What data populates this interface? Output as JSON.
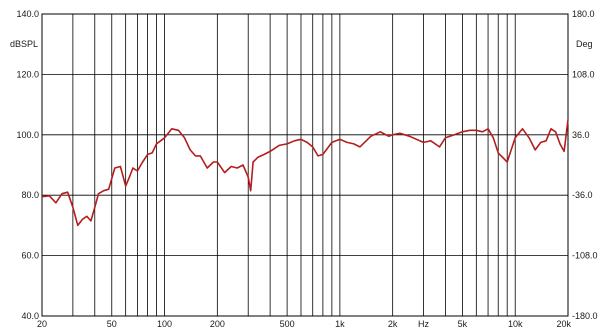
{
  "chart_data": {
    "type": "line",
    "title": "",
    "xlabel": "Hz",
    "ylabel_left": "dBSPL",
    "ylabel_right": "Deg",
    "x_scale": "log",
    "xlim": [
      20,
      20000
    ],
    "ylim_left": [
      40,
      140
    ],
    "ylim_right": [
      -180,
      180
    ],
    "grid": true,
    "legend": "none",
    "x_tick_labels": [
      {
        "value": 20,
        "label": "20"
      },
      {
        "value": 50,
        "label": "50"
      },
      {
        "value": 100,
        "label": "100"
      },
      {
        "value": 200,
        "label": "200"
      },
      {
        "value": 500,
        "label": "500"
      },
      {
        "value": 1000,
        "label": "1k"
      },
      {
        "value": 2000,
        "label": "2k"
      },
      {
        "value": 3000,
        "label": "Hz"
      },
      {
        "value": 5000,
        "label": "5k"
      },
      {
        "value": 10000,
        "label": "10k"
      },
      {
        "value": 20000,
        "label": "20k"
      }
    ],
    "y_tick_labels_left": [
      "140.0",
      "120.0",
      "100.0",
      "80.0",
      "60.0",
      "40.0"
    ],
    "y_tick_labels_right": [
      "180.0",
      "108.0",
      "36.0",
      "-36.0",
      "-108.0",
      "-180.0"
    ],
    "line_color": "#b51e1e",
    "series": [
      {
        "x": [
          20,
          22,
          24,
          26,
          28,
          30,
          32,
          34,
          36,
          38,
          40,
          42,
          45,
          48,
          52,
          56,
          60,
          63,
          66,
          70,
          75,
          80,
          85,
          90,
          95,
          100,
          110,
          120,
          130,
          140,
          150,
          160,
          175,
          190,
          200,
          220,
          240,
          260,
          280,
          300,
          310,
          320,
          340,
          370,
          400,
          450,
          500,
          550,
          600,
          650,
          700,
          750,
          800,
          900,
          1000,
          1100,
          1200,
          1300,
          1500,
          1700,
          1900,
          2000,
          2200,
          2500,
          3000,
          3300,
          3700,
          4000,
          4500,
          5000,
          5500,
          6000,
          6500,
          7000,
          7500,
          8000,
          9000,
          10000,
          11000,
          12000,
          13000,
          14000,
          15000,
          16000,
          17000,
          18000,
          19000,
          20000
        ],
        "y": [
          79.5,
          79.8,
          77.5,
          80.5,
          81,
          76,
          70,
          72,
          73,
          71.5,
          76,
          80.5,
          81.5,
          82,
          89,
          89.5,
          83,
          86,
          89,
          88,
          91,
          93.5,
          94,
          97,
          98,
          99,
          102,
          101.5,
          99,
          95,
          93,
          93,
          89,
          91,
          91,
          87.5,
          89.5,
          89,
          90,
          86,
          81.5,
          91,
          92.5,
          93.5,
          94.5,
          96.5,
          97,
          98,
          98.5,
          97.5,
          96,
          93,
          93.5,
          97.5,
          98.5,
          97.5,
          97,
          96,
          99.5,
          101,
          99.5,
          100,
          100.5,
          99.5,
          97.5,
          98,
          96,
          99,
          100,
          101,
          101.5,
          101.5,
          101,
          102,
          99,
          94,
          91,
          99,
          102,
          99,
          95,
          97.5,
          98,
          102,
          101,
          97,
          94.5,
          105
        ]
      }
    ]
  }
}
